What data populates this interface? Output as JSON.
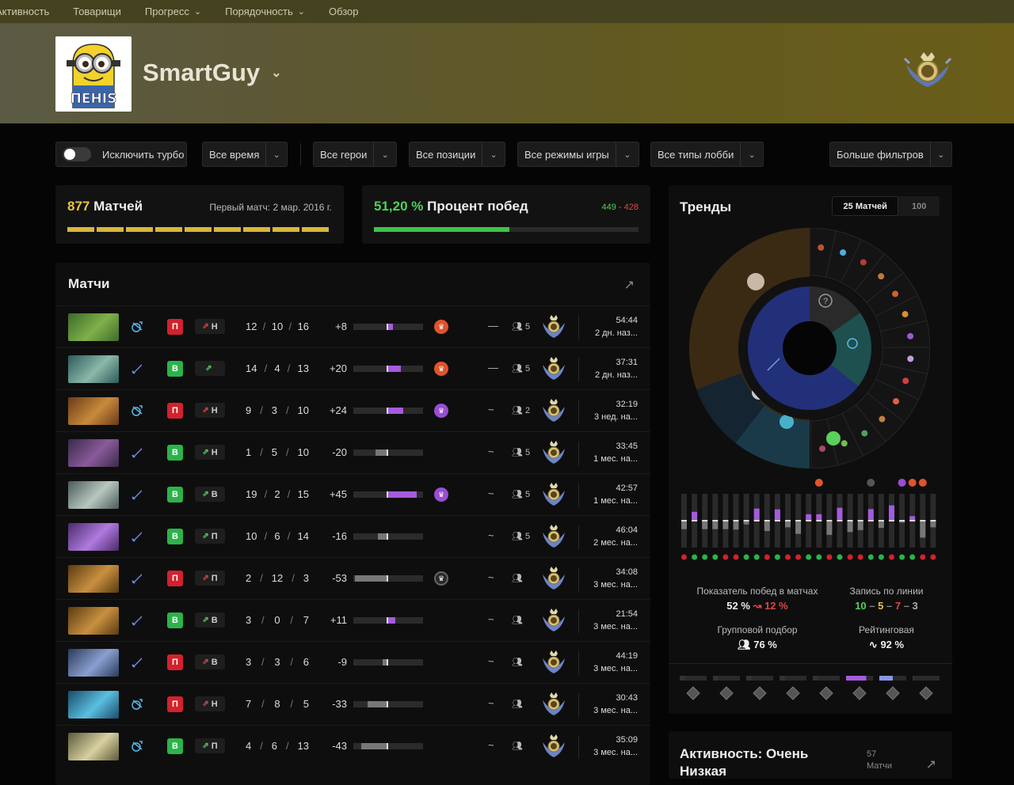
{
  "nav": [
    "Активность",
    "Товарищи",
    "Прогресс",
    "Порядочность",
    "Обзор"
  ],
  "nav_dropdown": [
    false,
    false,
    true,
    true,
    false
  ],
  "player": {
    "name": "SmartGuy",
    "avatar_text": "ПЕНIS"
  },
  "filters": {
    "exclude_turbo": "Исключить турбо",
    "time": "Все время",
    "heroes": "Все герои",
    "positions": "Все позиции",
    "modes": "Все режимы игры",
    "lobbies": "Все типы лобби",
    "more": "Больше фильтров"
  },
  "summary": {
    "matches_count": "877",
    "matches_label": " Матчей",
    "first_match": "Первый матч: 2 мар. 2016 г.",
    "winrate": "51,20 %",
    "winrate_label": " Процент побед",
    "wins": "449",
    "wl_sep": " - ",
    "losses": "428",
    "winrate_fraction": 0.512
  },
  "matches_title": "Матчи",
  "matches": [
    {
      "res": "П",
      "win": false,
      "lane": "Н",
      "k": 12,
      "d": 10,
      "a": 16,
      "imp": "+8",
      "impv": 8,
      "award": "orange",
      "trend": "—",
      "party": "5",
      "t": "54:44",
      "ago": "2 дн. наз...",
      "role": "support",
      "c1": "#3d6a2a",
      "c2": "#7fb04a"
    },
    {
      "res": "В",
      "win": true,
      "lane": "",
      "k": 14,
      "d": 4,
      "a": 13,
      "imp": "+20",
      "impv": 20,
      "award": "orange",
      "trend": "—",
      "party": "5",
      "t": "37:31",
      "ago": "2 дн. наз...",
      "role": "core",
      "c1": "#2c5a5a",
      "c2": "#8bb8a8"
    },
    {
      "res": "П",
      "win": false,
      "lane": "Н",
      "k": 9,
      "d": 3,
      "a": 10,
      "imp": "+24",
      "impv": 24,
      "award": "purple",
      "trend": "~",
      "party": "2",
      "t": "32:19",
      "ago": "3 нед. на...",
      "role": "support",
      "c1": "#6a3a1a",
      "c2": "#c88a3a"
    },
    {
      "res": "В",
      "win": true,
      "lane": "Н",
      "k": 1,
      "d": 5,
      "a": 10,
      "imp": "-20",
      "impv": -20,
      "award": "",
      "trend": "~",
      "party": "5",
      "t": "33:45",
      "ago": "1 мес. на...",
      "role": "core",
      "c1": "#3a2a4a",
      "c2": "#8a5a9a"
    },
    {
      "res": "В",
      "win": true,
      "lane": "В",
      "k": 19,
      "d": 2,
      "a": 15,
      "imp": "+45",
      "impv": 45,
      "award": "purple",
      "trend": "~",
      "party": "5",
      "t": "42:57",
      "ago": "1 мес. на...",
      "role": "core",
      "c1": "#4a5a5a",
      "c2": "#b8c8c0"
    },
    {
      "res": "В",
      "win": true,
      "lane": "П",
      "k": 10,
      "d": 6,
      "a": 14,
      "imp": "-16",
      "impv": -16,
      "award": "",
      "trend": "~",
      "party": "5",
      "t": "46:04",
      "ago": "2 мес. на...",
      "role": "core",
      "c1": "#4a2a6a",
      "c2": "#b07ae0"
    },
    {
      "res": "П",
      "win": false,
      "lane": "П",
      "k": 2,
      "d": 12,
      "a": 3,
      "imp": "-53",
      "impv": -53,
      "award": "grey",
      "trend": "~",
      "party": "",
      "t": "34:08",
      "ago": "3 мес. на...",
      "role": "core",
      "c1": "#5a3a10",
      "c2": "#c89040"
    },
    {
      "res": "В",
      "win": true,
      "lane": "В",
      "k": 3,
      "d": 0,
      "a": 7,
      "imp": "+11",
      "impv": 11,
      "award": "",
      "trend": "~",
      "party": "",
      "t": "21:54",
      "ago": "3 мес. на...",
      "role": "core",
      "c1": "#5a3a10",
      "c2": "#c89040"
    },
    {
      "res": "П",
      "win": false,
      "lane": "В",
      "k": 3,
      "d": 3,
      "a": 6,
      "imp": "-9",
      "impv": -9,
      "award": "",
      "trend": "~",
      "party": "",
      "t": "44:19",
      "ago": "3 мес. на...",
      "role": "core",
      "c1": "#2a3a5a",
      "c2": "#8aa0d0"
    },
    {
      "res": "П",
      "win": false,
      "lane": "Н",
      "k": 7,
      "d": 8,
      "a": 5,
      "imp": "-33",
      "impv": -33,
      "award": "",
      "trend": "~",
      "party": "",
      "t": "30:43",
      "ago": "3 мес. на...",
      "role": "support",
      "c1": "#1a4a6a",
      "c2": "#5ac0e0"
    },
    {
      "res": "В",
      "win": true,
      "lane": "П",
      "k": 4,
      "d": 6,
      "a": 13,
      "imp": "-43",
      "impv": -43,
      "award": "",
      "trend": "~",
      "party": "",
      "t": "35:09",
      "ago": "3 мес. на...",
      "role": "support",
      "c1": "#5a5a3a",
      "c2": "#d8d0a0"
    }
  ],
  "trends": {
    "title": "Тренды",
    "tab_active": "25 Матчей",
    "tab_other": "100",
    "question": "?",
    "bars": [
      {
        "win": false,
        "v": 0.45
      },
      {
        "win": true,
        "v": 0.55
      },
      {
        "win": true,
        "v": 0.45
      },
      {
        "win": true,
        "v": 0.45
      },
      {
        "win": false,
        "v": 0.45
      },
      {
        "win": false,
        "v": 0.47
      },
      {
        "win": true,
        "v": 0.2
      },
      {
        "win": true,
        "v": 0.75
      },
      {
        "win": false,
        "v": 0.55
      },
      {
        "win": true,
        "v": 0.7
      },
      {
        "win": false,
        "v": 0.35
      },
      {
        "win": false,
        "v": 0.7
      },
      {
        "win": true,
        "v": 0.4
      },
      {
        "win": true,
        "v": 0.4
      },
      {
        "win": false,
        "v": 0.75
      },
      {
        "win": true,
        "v": 0.8
      },
      {
        "win": false,
        "v": 0.6
      },
      {
        "win": false,
        "v": 0.5
      },
      {
        "win": true,
        "v": 0.72
      },
      {
        "win": true,
        "v": 0.38
      },
      {
        "win": false,
        "v": 0.95
      },
      {
        "win": true,
        "v": 0.1
      },
      {
        "win": true,
        "v": 0.28
      },
      {
        "win": false,
        "v": 0.9
      },
      {
        "win": false,
        "v": 0.35
      }
    ],
    "bar_awards": [
      0.27,
      0.43,
      0.48,
      0.53,
      0.56,
      0.59
    ],
    "stats": {
      "wr_label": "Показатель побед в матчах",
      "wr_value": "52 %",
      "wr_delta": "12 %",
      "lane_label": "Запись по линии",
      "lane_w": "10",
      "lane_d": "5",
      "lane_l": "7",
      "lane_s": "3",
      "party_label": "Групповой подбор",
      "party_value": "76 %",
      "ranked_label": "Рейтинговая",
      "ranked_value": "92 %"
    },
    "medal_levels": [
      0.2,
      0.2,
      0.2,
      0.2,
      0.2,
      0.75,
      0.5,
      0.05
    ],
    "medal_colors": [
      "#333",
      "#333",
      "#333",
      "#333",
      "#333",
      "#a45bdc",
      "#8a96e8",
      "#333"
    ]
  },
  "activity": {
    "title": "Активность: Очень Низкая",
    "count": "57",
    "count_label": "Матчи"
  },
  "colors": {
    "win": "#2bb34a",
    "loss": "#d3212d",
    "purple": "#a45bdc",
    "gold": "#e7c443"
  }
}
